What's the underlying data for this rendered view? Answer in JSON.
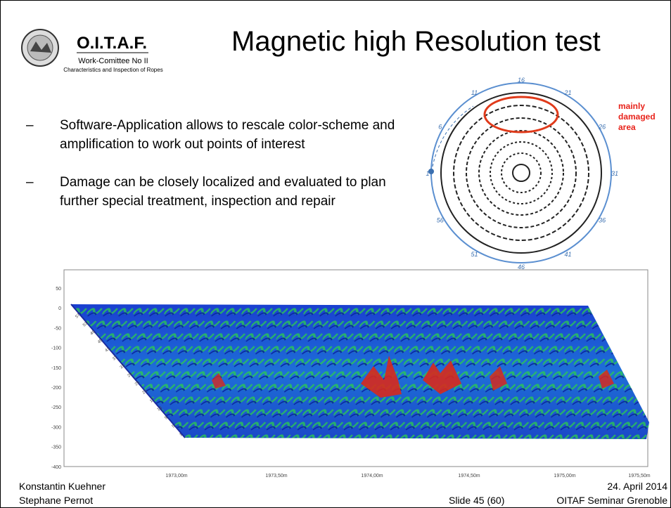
{
  "header": {
    "logo": {
      "name": "O.I.T.A.F.",
      "line1": "Work-Comittee No II",
      "line2": "Characteristics and Inspection of Ropes"
    },
    "title": "Magnetic high Resolution test"
  },
  "bullets": [
    "Software-Application allows to rescale color-scheme and amplification to work out points of interest",
    "Damage can be closely localized and evaluated to plan further special treatment, inspection and repair"
  ],
  "diagram": {
    "positions": [
      "16",
      "21",
      "26",
      "31",
      "36",
      "41",
      "46",
      "51",
      "56",
      "1",
      "6",
      "11"
    ],
    "annotation": [
      "mainly",
      "damaged",
      "area"
    ]
  },
  "plot": {
    "y_labels": [
      "50",
      "0",
      "-50",
      "-100",
      "-150",
      "-200",
      "-250",
      "-300",
      "-350",
      "-400"
    ],
    "x_labels": [
      "1973,00m",
      "1973,50m",
      "1974,00m",
      "1974,50m",
      "1975,00m",
      "1975,50m"
    ],
    "depth_labels": [
      "57",
      "53",
      "49",
      "45",
      "41",
      "37",
      "33",
      "29",
      "25",
      "21",
      "17",
      "13",
      "9",
      "5",
      "1"
    ]
  },
  "footer": {
    "author1": "Konstantin Kuehner",
    "author2": "Stephane Pernot",
    "slide": "Slide 45 (60)",
    "date": "24. April 2014",
    "event": "OITAF Seminar Grenoble"
  }
}
